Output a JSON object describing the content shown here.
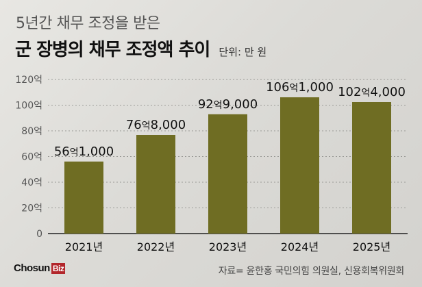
{
  "chart_data": {
    "type": "bar",
    "subtitle": "5년간 채무 조정을 받은",
    "title": "군 장병의 채무 조정액 추이",
    "unit": "단위: 만 원",
    "categories": [
      "2021년",
      "2022년",
      "2023년",
      "2024년",
      "2025년"
    ],
    "values": [
      561000,
      768000,
      929000,
      1061000,
      1024000
    ],
    "data_labels": [
      {
        "num": "56",
        "suffix": "억",
        "rest": "1,000"
      },
      {
        "num": "76",
        "suffix": "억",
        "rest": "8,000"
      },
      {
        "num": "92",
        "suffix": "억",
        "rest": "9,000"
      },
      {
        "num": "106",
        "suffix": "억",
        "rest": "1,000"
      },
      {
        "num": "102",
        "suffix": "억",
        "rest": "4,000"
      }
    ],
    "yticks": [
      {
        "value": 0,
        "label": "0"
      },
      {
        "value": 200000,
        "label": "20억"
      },
      {
        "value": 400000,
        "label": "40억"
      },
      {
        "value": 600000,
        "label": "60억"
      },
      {
        "value": 800000,
        "label": "80억"
      },
      {
        "value": 1000000,
        "label": "100억"
      },
      {
        "value": 1200000,
        "label": "120억"
      }
    ],
    "ylim": [
      0,
      1200000
    ],
    "grid": true,
    "bar_color": "#6f6d23"
  },
  "footer": {
    "logo_text": "Chosun",
    "logo_badge": "Biz",
    "source": "자료= 윤한홍 국민의힘 의원실, 신용회복위원회"
  }
}
